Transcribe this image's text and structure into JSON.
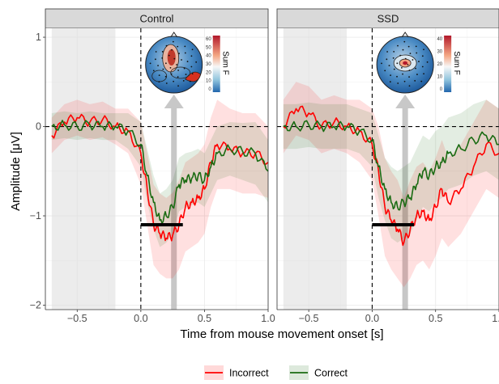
{
  "chart_data": {
    "type": "line",
    "xlabel": "Time from mouse movement onset [s]",
    "ylabel": "Amplitude [μV]",
    "xlim": [
      -0.75,
      1.0
    ],
    "ylim": [
      -2.05,
      1.1
    ],
    "x_ticks": [
      -0.5,
      0.0,
      0.5,
      1.0
    ],
    "x_tick_labels": [
      "−0.5",
      "0.0",
      "0.5",
      "1.0"
    ],
    "y_ticks": [
      -2,
      -1,
      0,
      1
    ],
    "y_tick_labels": [
      "−2",
      "−1",
      "0",
      "1"
    ],
    "grid": true,
    "legend_position": "bottom",
    "colors": {
      "Incorrect": "#ff0000",
      "Correct": "#1a6b12"
    },
    "baseline_window": [
      -0.7,
      -0.2
    ],
    "panels": [
      {
        "title": "Control",
        "significance_bar": [
          0.0,
          0.33
        ],
        "significance_y": -1.1,
        "arrow_x": 0.26,
        "colorbar": {
          "label": "Sum F",
          "ticks": [
            "60",
            "50",
            "40",
            "30",
            "20",
            "10",
            "0"
          ]
        },
        "series": [
          {
            "name": "Incorrect",
            "x": [
              -0.7,
              -0.6,
              -0.5,
              -0.4,
              -0.3,
              -0.2,
              -0.1,
              0.0,
              0.05,
              0.1,
              0.15,
              0.2,
              0.25,
              0.3,
              0.35,
              0.4,
              0.45,
              0.5,
              0.55,
              0.6,
              0.7,
              0.8,
              0.9,
              1.0
            ],
            "y": [
              -0.1,
              0.05,
              0.1,
              0.05,
              0.08,
              0.0,
              -0.05,
              -0.3,
              -0.7,
              -1.1,
              -1.2,
              -1.25,
              -1.22,
              -1.1,
              -0.9,
              -0.85,
              -0.8,
              -0.7,
              -0.4,
              -0.2,
              -0.25,
              -0.3,
              -0.3,
              -0.4
            ],
            "lower": [
              -0.3,
              -0.15,
              -0.1,
              -0.15,
              -0.12,
              -0.2,
              -0.3,
              -0.65,
              -1.1,
              -1.55,
              -1.65,
              -1.7,
              -1.7,
              -1.6,
              -1.4,
              -1.35,
              -1.3,
              -1.2,
              -0.9,
              -0.7,
              -0.7,
              -0.75,
              -0.75,
              -0.8
            ],
            "upper": [
              0.1,
              0.25,
              0.3,
              0.25,
              0.28,
              0.2,
              0.2,
              0.05,
              -0.3,
              -0.65,
              -0.75,
              -0.8,
              -0.74,
              -0.6,
              -0.4,
              -0.35,
              -0.3,
              -0.2,
              0.1,
              0.3,
              0.2,
              0.15,
              0.15,
              0.0
            ]
          },
          {
            "name": "Correct",
            "x": [
              -0.7,
              -0.6,
              -0.5,
              -0.4,
              -0.3,
              -0.2,
              -0.1,
              0.0,
              0.05,
              0.1,
              0.15,
              0.2,
              0.25,
              0.3,
              0.35,
              0.4,
              0.45,
              0.5,
              0.55,
              0.6,
              0.7,
              0.8,
              0.9,
              1.0
            ],
            "y": [
              0.0,
              0.02,
              0.0,
              0.02,
              0.0,
              0.0,
              -0.05,
              -0.2,
              -0.55,
              -0.85,
              -1.05,
              -1.0,
              -0.9,
              -0.65,
              -0.6,
              -0.58,
              -0.55,
              -0.6,
              -0.45,
              -0.3,
              -0.25,
              -0.28,
              -0.3,
              -0.5
            ],
            "lower": [
              -0.15,
              -0.13,
              -0.15,
              -0.13,
              -0.15,
              -0.15,
              -0.25,
              -0.45,
              -0.85,
              -1.15,
              -1.35,
              -1.3,
              -1.2,
              -0.95,
              -0.9,
              -0.88,
              -0.85,
              -0.9,
              -0.75,
              -0.6,
              -0.55,
              -0.6,
              -0.65,
              -0.85
            ],
            "upper": [
              0.15,
              0.17,
              0.15,
              0.17,
              0.15,
              0.15,
              0.15,
              0.05,
              -0.25,
              -0.55,
              -0.75,
              -0.7,
              -0.6,
              -0.35,
              -0.3,
              -0.28,
              -0.25,
              -0.3,
              -0.15,
              0.0,
              0.05,
              0.04,
              0.05,
              -0.15
            ]
          }
        ]
      },
      {
        "title": "SSD",
        "significance_bar": [
          0.0,
          0.33
        ],
        "significance_y": -1.1,
        "arrow_x": 0.26,
        "colorbar": {
          "label": "Sum F",
          "ticks": [
            "40",
            "30",
            "20",
            "10",
            "0"
          ]
        },
        "series": [
          {
            "name": "Incorrect",
            "x": [
              -0.7,
              -0.6,
              -0.5,
              -0.4,
              -0.3,
              -0.2,
              -0.1,
              0.0,
              0.05,
              0.1,
              0.15,
              0.2,
              0.25,
              0.3,
              0.35,
              0.4,
              0.45,
              0.5,
              0.55,
              0.6,
              0.7,
              0.8,
              0.9,
              1.0
            ],
            "y": [
              0.0,
              0.2,
              0.15,
              0.0,
              0.05,
              0.0,
              -0.05,
              -0.2,
              -0.5,
              -0.9,
              -1.05,
              -1.15,
              -1.3,
              -1.15,
              -1.0,
              -0.95,
              -1.05,
              -0.9,
              -0.7,
              -0.85,
              -0.7,
              -0.45,
              -0.2,
              -0.3
            ],
            "lower": [
              -0.3,
              -0.1,
              -0.15,
              -0.3,
              -0.25,
              -0.3,
              -0.4,
              -0.6,
              -1.0,
              -1.45,
              -1.6,
              -1.7,
              -1.8,
              -1.7,
              -1.55,
              -1.5,
              -1.6,
              -1.45,
              -1.25,
              -1.35,
              -1.2,
              -0.95,
              -0.7,
              -0.8
            ],
            "upper": [
              0.3,
              0.5,
              0.45,
              0.3,
              0.35,
              0.3,
              0.3,
              0.2,
              0.0,
              -0.35,
              -0.5,
              -0.6,
              -0.8,
              -0.6,
              -0.45,
              -0.4,
              -0.5,
              -0.35,
              -0.15,
              -0.35,
              -0.2,
              0.05,
              0.3,
              0.2
            ]
          },
          {
            "name": "Correct",
            "x": [
              -0.7,
              -0.6,
              -0.5,
              -0.4,
              -0.3,
              -0.2,
              -0.1,
              0.0,
              0.05,
              0.1,
              0.15,
              0.2,
              0.25,
              0.3,
              0.35,
              0.4,
              0.45,
              0.5,
              0.55,
              0.6,
              0.7,
              0.8,
              0.9,
              1.0
            ],
            "y": [
              0.0,
              0.0,
              0.02,
              0.0,
              0.0,
              0.0,
              -0.05,
              -0.15,
              -0.45,
              -0.7,
              -0.85,
              -0.9,
              -0.85,
              -0.8,
              -0.65,
              -0.5,
              -0.55,
              -0.45,
              -0.4,
              -0.3,
              -0.25,
              -0.15,
              -0.1,
              -0.2
            ],
            "lower": [
              -0.25,
              -0.25,
              -0.23,
              -0.25,
              -0.25,
              -0.25,
              -0.3,
              -0.45,
              -0.8,
              -1.05,
              -1.25,
              -1.3,
              -1.25,
              -1.2,
              -1.05,
              -0.9,
              -0.95,
              -0.85,
              -0.8,
              -0.7,
              -0.65,
              -0.55,
              -0.5,
              -0.6
            ],
            "upper": [
              0.25,
              0.25,
              0.27,
              0.25,
              0.25,
              0.25,
              0.2,
              0.15,
              -0.1,
              -0.35,
              -0.45,
              -0.5,
              -0.45,
              -0.4,
              -0.25,
              -0.1,
              -0.15,
              -0.05,
              0.0,
              0.1,
              0.15,
              0.25,
              0.3,
              0.2
            ]
          }
        ]
      }
    ]
  }
}
